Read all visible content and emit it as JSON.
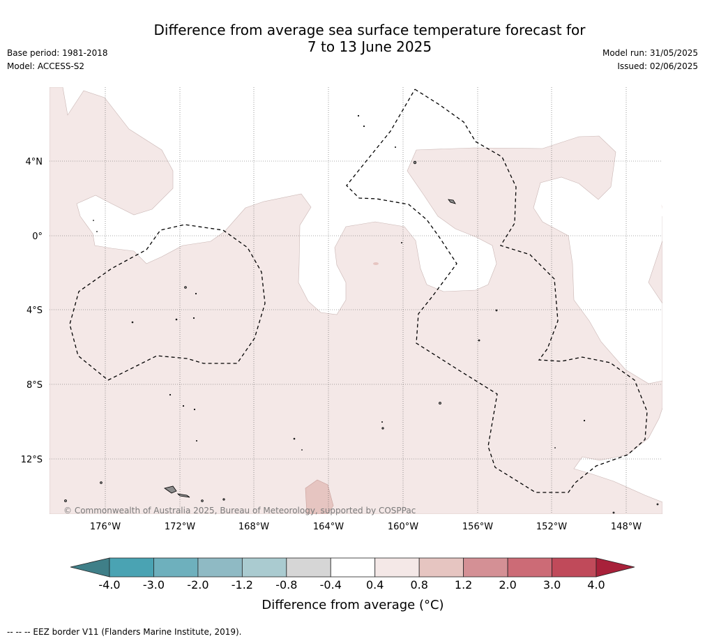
{
  "title_line1": "Difference from average sea surface temperature forecast for",
  "title_line2": "7 to 13 June 2025",
  "base_period": "Base period: 1981-2018",
  "model": "Model: ACCESS-S2",
  "model_run": "Model run: 31/05/2025",
  "issued": "Issued: 02/06/2025",
  "lat_labels": [
    "4°N",
    "0°",
    "4°S",
    "8°S",
    "12°S"
  ],
  "lon_labels": [
    "176°W",
    "172°W",
    "168°W",
    "164°W",
    "160°W",
    "156°W",
    "152°W",
    "148°W"
  ],
  "copyright": "© Commonwealth of Australia 2025, Bureau of Meteorology, supported by COSPPac",
  "colorbar": {
    "ticks": [
      "-4.0",
      "-3.0",
      "-2.0",
      "-1.2",
      "-0.8",
      "-0.4",
      "0.4",
      "0.8",
      "1.2",
      "2.0",
      "3.0",
      "4.0"
    ],
    "colors": [
      "#3f7f88",
      "#4aa3b3",
      "#6eb0bd",
      "#8fbac4",
      "#aacbd0",
      "#d6d6d6",
      "#ffffff",
      "#f4e8e7",
      "#e6c5c1",
      "#d49095",
      "#cc6b76",
      "#c04a5a",
      "#a8213a"
    ],
    "label": "Difference from average (°C)"
  },
  "map_colors": {
    "warm_fill": "#f4e8e7",
    "warmer_fill": "#e6c5c1",
    "land": "#8c8c8c"
  },
  "footer": "--  --  -- EEZ border V11 (Flanders Marine Institute, 2019)."
}
